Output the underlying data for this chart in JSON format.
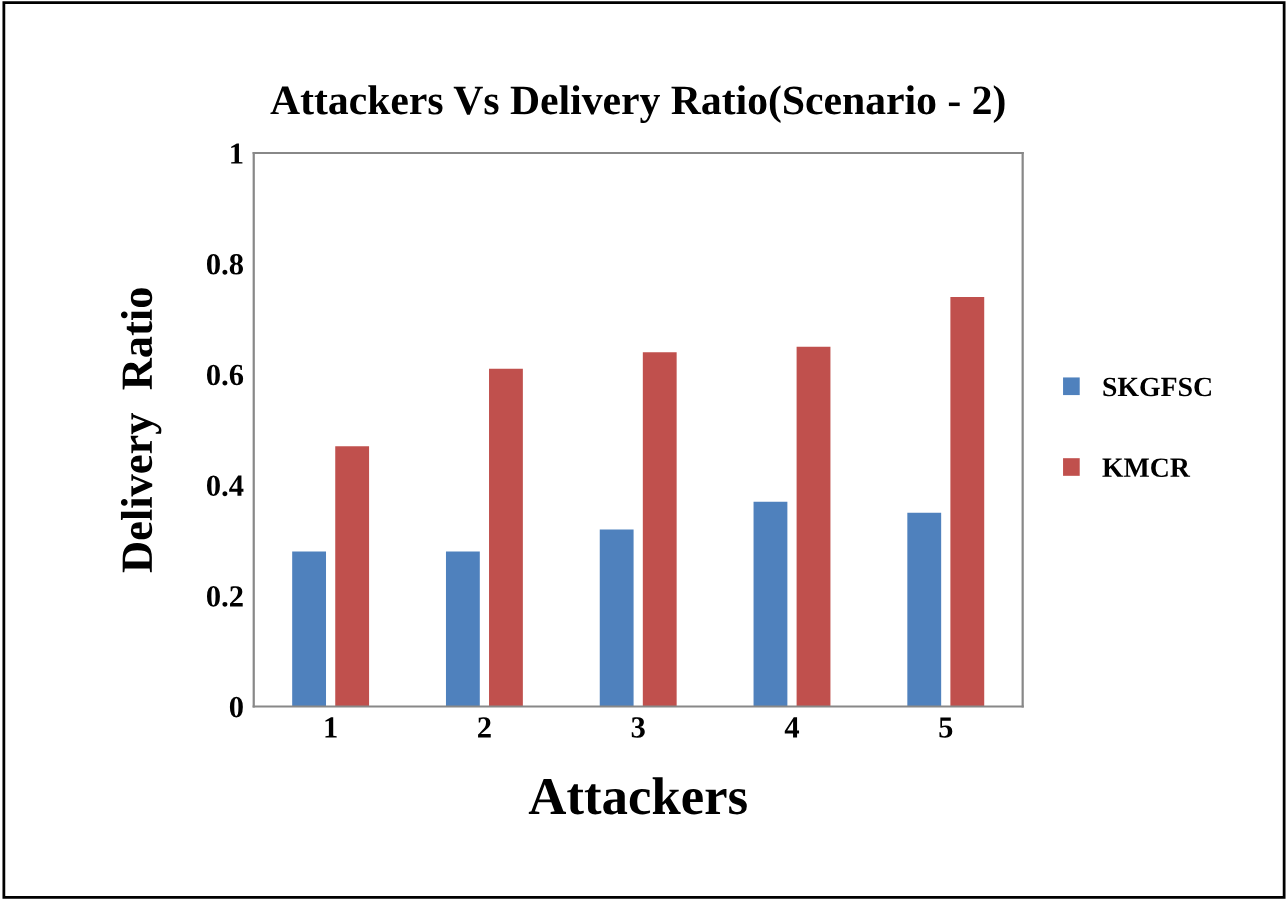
{
  "chart_data": {
    "type": "bar",
    "title": "Attackers Vs Delivery Ratio(Scenario - 2)",
    "xlabel": "Attackers",
    "ylabel": "Delivery  Ratio",
    "categories": [
      "1",
      "2",
      "3",
      "4",
      "5"
    ],
    "series": [
      {
        "name": "SKGFSC",
        "color": "#4f81bd",
        "values": [
          0.28,
          0.28,
          0.32,
          0.37,
          0.35
        ]
      },
      {
        "name": "KMCR",
        "color": "#c0504d",
        "values": [
          0.47,
          0.61,
          0.64,
          0.65,
          0.74
        ]
      }
    ],
    "ylim": [
      0,
      1
    ],
    "yticks": [
      0,
      0.2,
      0.4,
      0.6,
      0.8,
      1
    ],
    "grid": false,
    "legend": "right"
  }
}
